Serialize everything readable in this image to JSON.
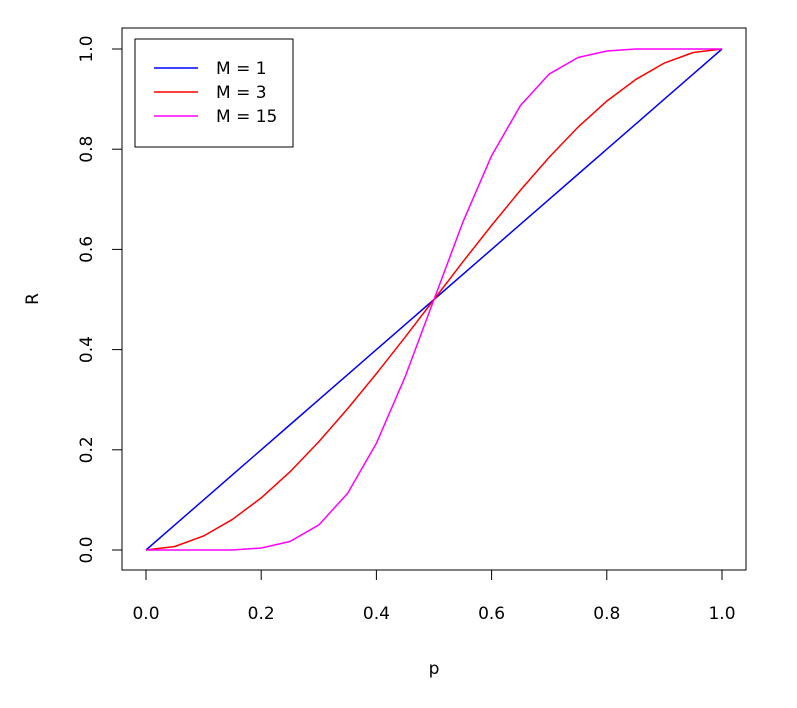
{
  "chart_data": {
    "type": "line",
    "title": "",
    "xlabel": "p",
    "ylabel": "R",
    "xlim": [
      0,
      1
    ],
    "ylim": [
      0,
      1
    ],
    "x_ticks": [
      "0.0",
      "0.2",
      "0.4",
      "0.6",
      "0.8",
      "1.0"
    ],
    "y_ticks": [
      "0.0",
      "0.2",
      "0.4",
      "0.6",
      "0.8",
      "1.0"
    ],
    "grid": false,
    "legend_position": "top-left",
    "x": [
      0,
      0.05,
      0.1,
      0.15,
      0.2,
      0.25,
      0.3,
      0.35,
      0.4,
      0.45,
      0.5,
      0.55,
      0.6,
      0.65,
      0.7,
      0.75,
      0.8,
      0.85,
      0.9,
      0.95,
      1
    ],
    "series": [
      {
        "name": "M = 1",
        "color": "#0000ff",
        "values": [
          0,
          0.05,
          0.1,
          0.15,
          0.2,
          0.25,
          0.3,
          0.35,
          0.4,
          0.45,
          0.5,
          0.55,
          0.6,
          0.65,
          0.7,
          0.75,
          0.8,
          0.85,
          0.9,
          0.95,
          1
        ]
      },
      {
        "name": "M = 3",
        "color": "#ff0000",
        "values": [
          0,
          0.007,
          0.028,
          0.061,
          0.104,
          0.156,
          0.216,
          0.282,
          0.352,
          0.425,
          0.5,
          0.575,
          0.648,
          0.718,
          0.784,
          0.844,
          0.896,
          0.939,
          0.972,
          0.993,
          1
        ]
      },
      {
        "name": "M = 15",
        "color": "#ff00ff",
        "values": [
          0,
          0,
          0,
          0,
          0.004,
          0.017,
          0.05,
          0.113,
          0.213,
          0.346,
          0.5,
          0.654,
          0.787,
          0.887,
          0.95,
          0.983,
          0.996,
          1,
          1,
          1,
          1
        ]
      }
    ]
  }
}
